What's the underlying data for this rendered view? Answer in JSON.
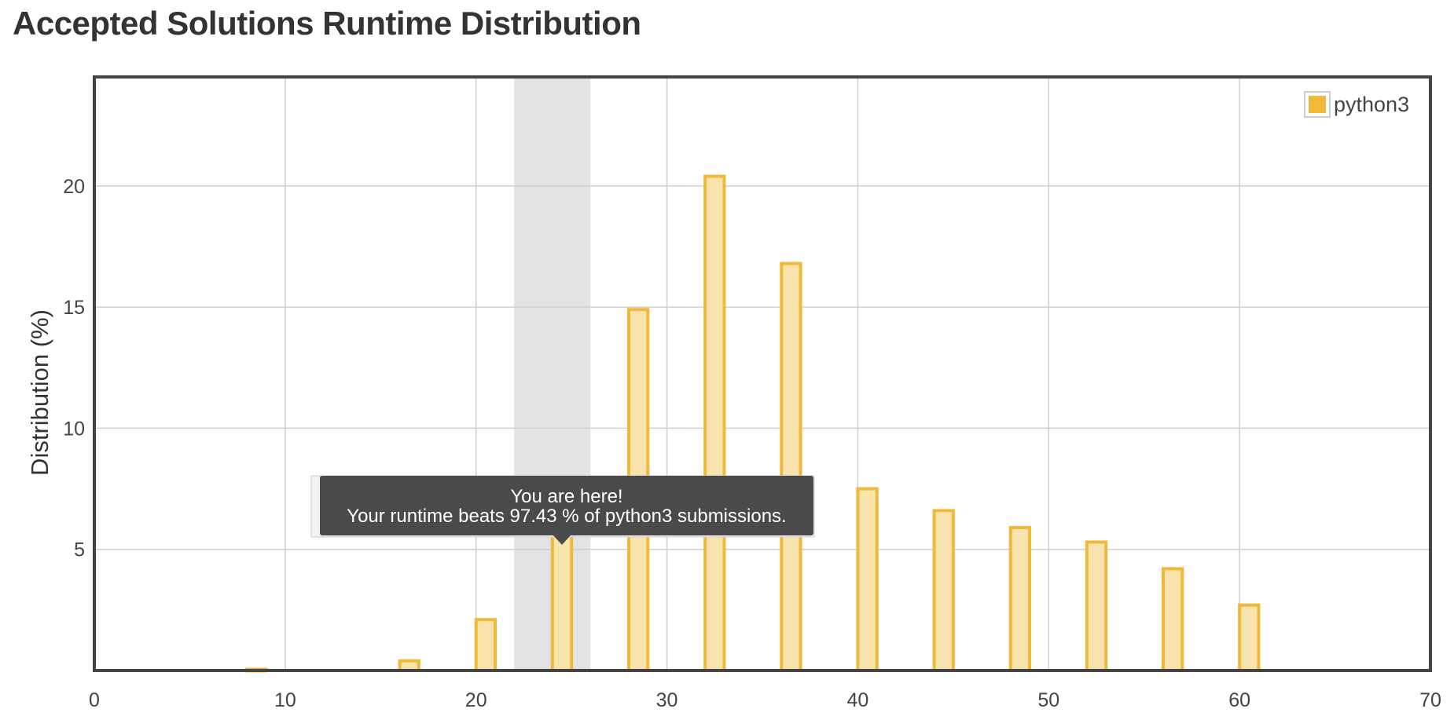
{
  "chart_data": {
    "type": "bar",
    "title": "Accepted Solutions Runtime Distribution",
    "xlabel": "",
    "ylabel": "Distribution (%)",
    "xlim": [
      0,
      70
    ],
    "ylim": [
      0,
      24.5
    ],
    "x_ticks": [
      0,
      10,
      20,
      30,
      40,
      50,
      60,
      70
    ],
    "y_ticks": [
      5,
      10,
      15,
      20
    ],
    "grid": true,
    "legend_position": "top-right",
    "series": [
      {
        "name": "python3",
        "color": "#f0b93a",
        "fill": "#fae4ad",
        "x": [
          8.5,
          16.5,
          20.5,
          24.5,
          28.5,
          32.5,
          36.5,
          40.5,
          44.5,
          48.5,
          52.5,
          56.5,
          60.5
        ],
        "values": [
          0.05,
          0.4,
          2.1,
          5.8,
          14.9,
          20.4,
          16.8,
          7.5,
          6.6,
          5.9,
          5.3,
          4.2,
          2.7
        ]
      }
    ],
    "highlight_band": [
      22,
      26
    ],
    "tooltip": {
      "line1": "You are here!",
      "line2": "Your runtime beats 97.43 % of python3 submissions.",
      "anchor_x": 24.5
    }
  }
}
